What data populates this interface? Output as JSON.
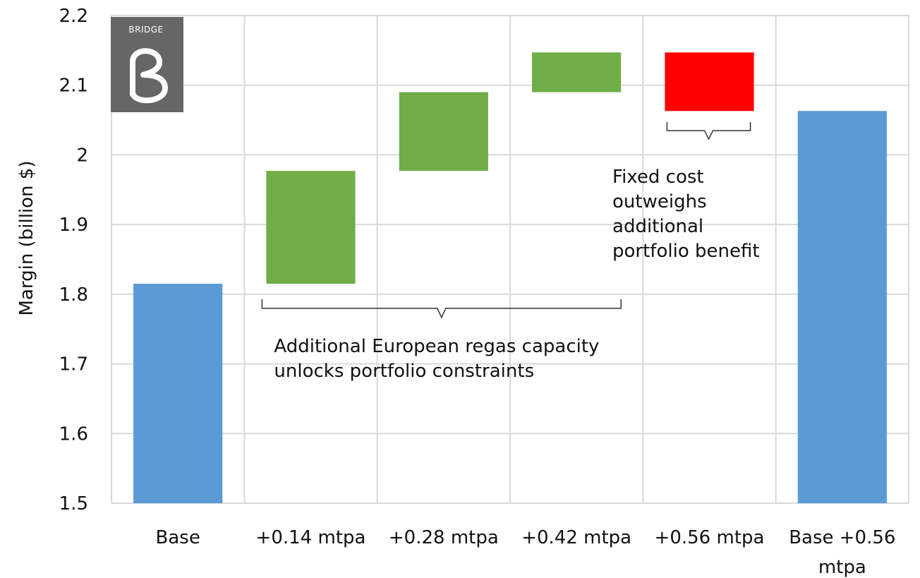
{
  "chart_data": {
    "type": "bar",
    "variant": "waterfall",
    "title": "",
    "xlabel": "",
    "ylabel": "Margin (billion $)",
    "ylim": [
      1.5,
      2.2
    ],
    "yticks": [
      "1.5",
      "1.6",
      "1.7",
      "1.8",
      "1.9",
      "2",
      "2.1",
      "2.2"
    ],
    "grid": true,
    "categories": [
      "Base",
      "+0.14 mtpa",
      "+0.28 mtpa",
      "+0.42 mtpa",
      "+0.56 mtpa",
      "Base +0.56 mtpa"
    ],
    "bars": [
      {
        "category": "Base",
        "kind": "total",
        "start": 1.5,
        "end": 1.815
      },
      {
        "category": "+0.14 mtpa",
        "kind": "increase",
        "start": 1.815,
        "end": 1.977
      },
      {
        "category": "+0.28 mtpa",
        "kind": "increase",
        "start": 1.977,
        "end": 2.09
      },
      {
        "category": "+0.42 mtpa",
        "kind": "increase",
        "start": 2.09,
        "end": 2.147
      },
      {
        "category": "+0.56 mtpa",
        "kind": "decrease",
        "start": 2.147,
        "end": 2.063
      },
      {
        "category": "Base +0.56 mtpa",
        "kind": "total",
        "start": 1.5,
        "end": 2.063
      }
    ],
    "colors": {
      "total": "#5b9bd5",
      "increase": "#70ad47",
      "decrease": "#ff0000",
      "grid": "#d9d9d9"
    },
    "annotations": [
      {
        "text_lines": [
          "Additional European regas capacity",
          "unlocks portfolio constraints"
        ],
        "brace_from": 1,
        "brace_to": 3,
        "brace_level": 1.8
      },
      {
        "text_lines": [
          "Fixed cost",
          "outweighs",
          "additional",
          "portfolio benefit"
        ],
        "brace_from": 4,
        "brace_to": 4,
        "brace_level": 2.05
      }
    ]
  },
  "logo": {
    "text": "BRIDGE",
    "bg": "#666666"
  }
}
